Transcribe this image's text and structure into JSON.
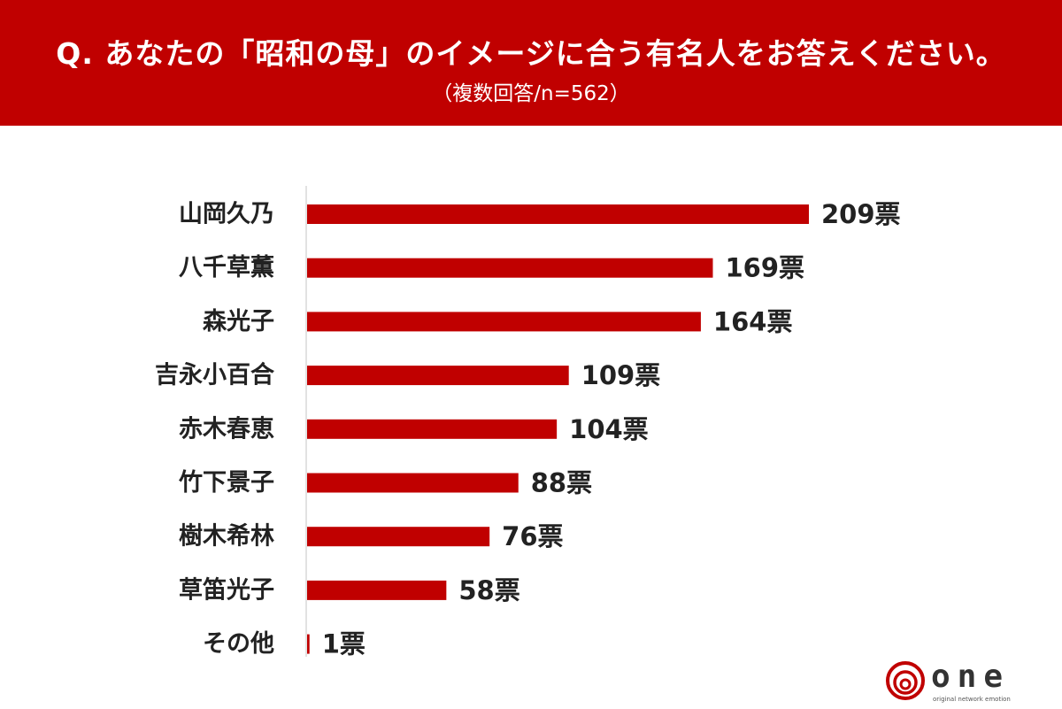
{
  "header": {
    "title": "Q. あなたの「昭和の母」のイメージに合う有名人をお答えください。",
    "subtitle": "（複数回答/n=562）"
  },
  "chart_data": {
    "type": "bar",
    "orientation": "horizontal",
    "categories": [
      "山岡久乃",
      "八千草薫",
      "森光子",
      "吉永小百合",
      "赤木春恵",
      "竹下景子",
      "樹木希林",
      "草笛光子",
      "その他"
    ],
    "values": [
      209,
      169,
      164,
      109,
      104,
      88,
      76,
      58,
      1
    ],
    "value_labels": [
      "209票",
      "169票",
      "164票",
      "109票",
      "104票",
      "88票",
      "76票",
      "58票",
      "1票"
    ],
    "unit": "票",
    "xlim": [
      0,
      209
    ],
    "bar_color": "#c00000",
    "grid": false,
    "legend": "none"
  },
  "logo": {
    "text": "one",
    "tagline": "original network emotion",
    "color": "#c00000"
  }
}
